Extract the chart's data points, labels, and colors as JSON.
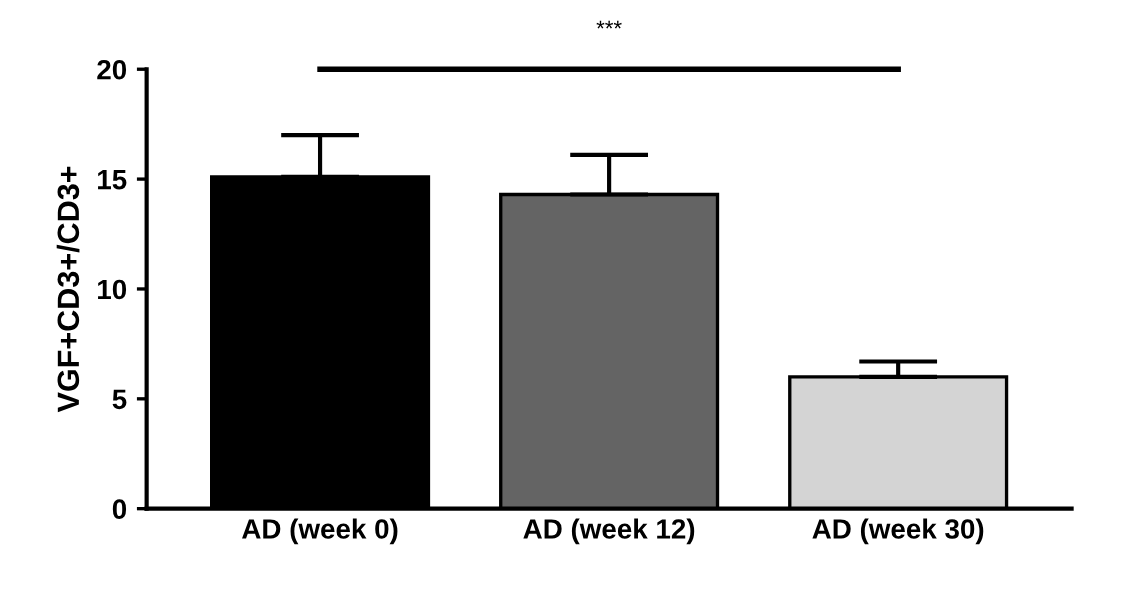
{
  "chart_data": {
    "type": "bar",
    "ylabel": "VGF+CD3+/CD3+",
    "categories": [
      "AD (week 0)",
      "AD (week 12)",
      "AD (week 30)"
    ],
    "values": [
      15.1,
      14.3,
      6.0
    ],
    "colors": [
      "#000000",
      "#646464",
      "#d4d4d4"
    ],
    "errors": [
      [
        15.1,
        17.0
      ],
      [
        14.3,
        16.1
      ],
      [
        6.0,
        6.7
      ]
    ],
    "ylim": [
      0,
      20
    ],
    "yticks": [
      0,
      5,
      10,
      15,
      20
    ],
    "grid": false,
    "annotations": [
      "***"
    ]
  }
}
